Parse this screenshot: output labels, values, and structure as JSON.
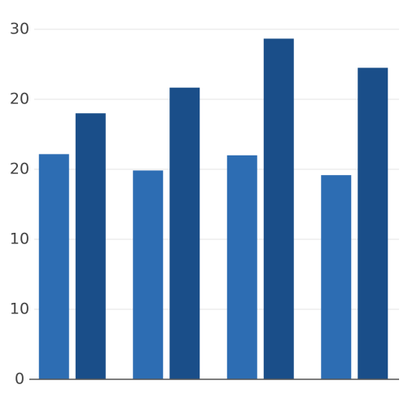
{
  "chart_data": {
    "type": "bar",
    "categories": [
      null,
      null,
      null,
      null
    ],
    "series": [
      {
        "color": "#2d6db3",
        "values": [
          19.3,
          17.9,
          19.2,
          17.5
        ]
      },
      {
        "color": "#1a4e89",
        "values": [
          22.8,
          25.0,
          29.2,
          26.7
        ]
      }
    ],
    "ylim": [
      0,
      30
    ],
    "yticks": [
      0,
      {
        "value": 6,
        "label": "10"
      },
      {
        "value": 12,
        "label": "10"
      },
      {
        "value": 18,
        "label": "20"
      },
      {
        "value": 24,
        "label": "20"
      },
      30
    ],
    "grid": true
  }
}
